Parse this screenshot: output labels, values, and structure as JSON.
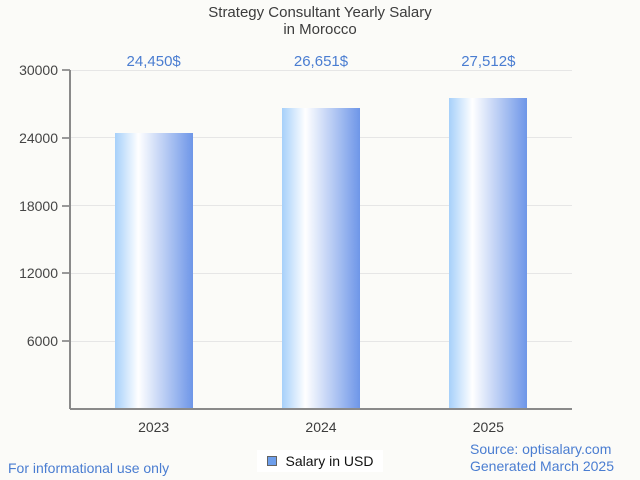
{
  "page": {
    "footer_left": "For informational use only",
    "footer_source": "Source: optisalary.com",
    "footer_generated": "Generated March 2025"
  },
  "chart_data": {
    "type": "bar",
    "title": "Strategy Consultant Yearly Salary",
    "title_line2": "in Morocco",
    "categories": [
      "2023",
      "2024",
      "2025"
    ],
    "values": [
      24450,
      26651,
      27512
    ],
    "value_labels": [
      "24,450$",
      "26,651$",
      "27,512$"
    ],
    "series_name": "Salary in USD",
    "xlabel": "",
    "ylabel": "",
    "ylim": [
      0,
      30000
    ],
    "yticks": [
      30000,
      24000,
      18000,
      12000,
      6000
    ],
    "grid": true,
    "legend_position": "bottom",
    "colors": {
      "bar_gradient_left": "#a6d0fa",
      "bar_gradient_mid": "#ffffff",
      "bar_gradient_right": "#6e96e8",
      "value_label": "#4a7dd1",
      "legend_swatch": "#6d9eeb",
      "title": "#3c3c3c",
      "axis_label": "#454545",
      "gridline": "#e6e6e6",
      "axis_line": "#8a8a8a",
      "footer_text": "#4a7dd1"
    }
  }
}
